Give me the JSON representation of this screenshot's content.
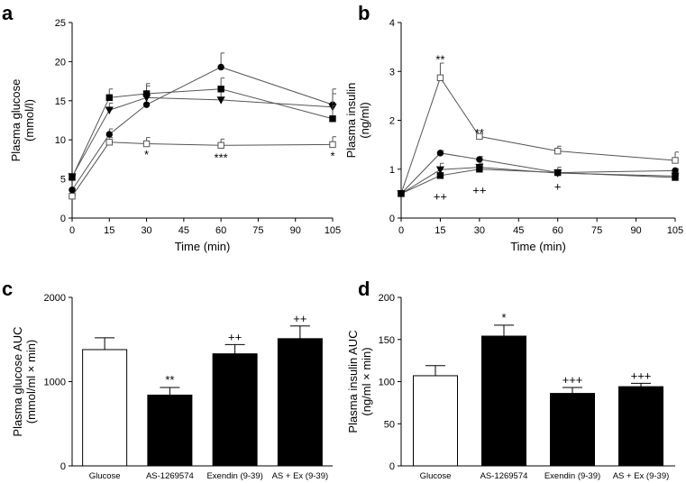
{
  "chart_data": [
    {
      "panel": "a",
      "type": "line",
      "xlabel": "Time (min)",
      "ylabel": "Plasma glucose (mmol/l)",
      "ylabel_lines": [
        "Plasma glucose",
        "(mmol/l)"
      ],
      "x": [
        0,
        15,
        30,
        60,
        105
      ],
      "xticks": [
        0,
        15,
        30,
        45,
        60,
        75,
        90,
        105
      ],
      "yticks": [
        0,
        5,
        10,
        15,
        20,
        25
      ],
      "xlim": [
        0,
        105
      ],
      "ylim": [
        0,
        25
      ],
      "series": [
        {
          "name": "Glucose",
          "marker": "circle",
          "values": [
            3.6,
            10.7,
            14.5,
            19.3,
            14.5
          ],
          "err": [
            0.2,
            0.7,
            1.2,
            1.8,
            2.0
          ]
        },
        {
          "name": "AS-1269574",
          "marker": "open-square",
          "values": [
            2.8,
            9.7,
            9.5,
            9.3,
            9.4
          ],
          "err": [
            0.2,
            0.6,
            0.8,
            0.8,
            1.0
          ]
        },
        {
          "name": "Exendin (9-39)",
          "marker": "triangle-down",
          "values": [
            5.3,
            13.8,
            15.4,
            15.1,
            14.2
          ],
          "err": [
            0.2,
            0.9,
            1.8,
            1.2,
            1.7
          ]
        },
        {
          "name": "AS + Ex (9-39)",
          "marker": "square",
          "values": [
            5.2,
            15.4,
            15.9,
            16.5,
            12.7
          ],
          "err": [
            0.2,
            1.1,
            1.0,
            1.4,
            1.7
          ]
        }
      ],
      "annotations": [
        {
          "x": 30,
          "y": 8.2,
          "text": "*"
        },
        {
          "x": 60,
          "y": 7.8,
          "text": "***"
        },
        {
          "x": 105,
          "y": 8.0,
          "text": "*"
        }
      ]
    },
    {
      "panel": "b",
      "type": "line",
      "xlabel": "Time (min)",
      "ylabel": "Plasma insulin (ng/ml)",
      "ylabel_lines": [
        "Plasma insulin",
        "(ng/ml)"
      ],
      "x": [
        0,
        15,
        30,
        60,
        105
      ],
      "xticks": [
        0,
        15,
        30,
        45,
        60,
        75,
        90,
        105
      ],
      "yticks": [
        0,
        1,
        2,
        3,
        4
      ],
      "xlim": [
        0,
        105
      ],
      "ylim": [
        0,
        4
      ],
      "series": [
        {
          "name": "Glucose",
          "marker": "circle",
          "values": [
            0.5,
            1.33,
            1.2,
            0.93,
            0.97
          ],
          "err": [
            0.03,
            0.05,
            0.06,
            0.06,
            0.04
          ]
        },
        {
          "name": "AS-1269574",
          "marker": "open-square",
          "values": [
            0.5,
            2.87,
            1.67,
            1.37,
            1.18
          ],
          "err": [
            0.03,
            0.3,
            0.06,
            0.1,
            0.17
          ]
        },
        {
          "name": "Exendin (9-39)",
          "marker": "triangle-down",
          "values": [
            0.5,
            0.99,
            1.04,
            0.92,
            0.86
          ],
          "err": [
            0.03,
            0.13,
            0.08,
            0.12,
            0.05
          ]
        },
        {
          "name": "AS + Ex (9-39)",
          "marker": "square",
          "values": [
            0.5,
            0.87,
            1.0,
            0.93,
            0.83
          ],
          "err": [
            0.03,
            0.05,
            0.05,
            0.05,
            0.04
          ]
        }
      ],
      "annotations": [
        {
          "x": 15,
          "y": 3.25,
          "text": "**"
        },
        {
          "x": 30,
          "y": 1.75,
          "text": "**"
        },
        {
          "x": 15,
          "y": 0.45,
          "text": "++"
        },
        {
          "x": 30,
          "y": 0.58,
          "text": "++"
        },
        {
          "x": 60,
          "y": 0.65,
          "text": "+"
        }
      ]
    },
    {
      "panel": "c",
      "type": "bar",
      "ylabel": "Plasma glucose AUC (mmol/ml × min)",
      "ylabel_lines": [
        "Plasma glucose AUC",
        "(mmol/ml × min)"
      ],
      "categories": [
        "Glucose",
        "AS-1269574",
        "Exendin (9-39)",
        "AS + Ex (9-39)"
      ],
      "values": [
        1380,
        840,
        1330,
        1510
      ],
      "err": [
        140,
        90,
        110,
        150
      ],
      "fills": [
        "#ffffff",
        "#000000",
        "#000000",
        "#000000"
      ],
      "bar_labels": [
        "",
        "**",
        "++",
        "++"
      ],
      "yticks": [
        0,
        1000,
        2000
      ],
      "ylim": [
        0,
        2000
      ]
    },
    {
      "panel": "d",
      "type": "bar",
      "ylabel": "Plasma insulin AUC (ng/ml × min)",
      "ylabel_lines": [
        "Plasma insulin AUC",
        "(ng/ml × min)"
      ],
      "categories": [
        "Glucose",
        "AS-1269574",
        "Exendin (9-39)",
        "AS + Ex (9-39)"
      ],
      "values": [
        107,
        154,
        86,
        94
      ],
      "err": [
        12,
        13,
        7,
        4
      ],
      "fills": [
        "#ffffff",
        "#000000",
        "#000000",
        "#000000"
      ],
      "bar_labels": [
        "",
        "*",
        "+++",
        "+++"
      ],
      "yticks": [
        0,
        50,
        100,
        150,
        200
      ],
      "ylim": [
        0,
        200
      ]
    }
  ]
}
